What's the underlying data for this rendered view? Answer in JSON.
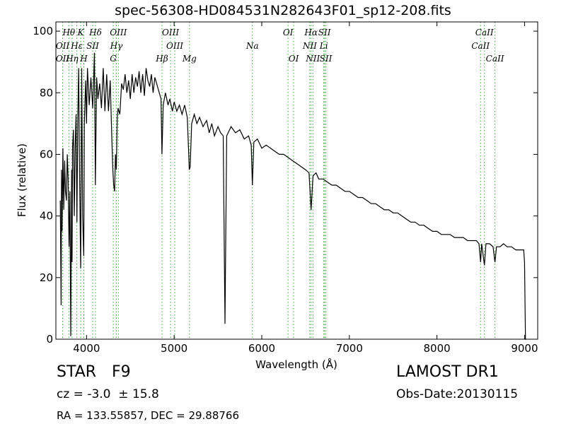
{
  "chart_data": {
    "type": "line",
    "title": "spec-56308-HD084531N282643F01_sp12-208.fits",
    "xlabel": "Wavelength (Å)",
    "ylabel": "Flux (relative)",
    "xlim": [
      3650,
      9150
    ],
    "ylim": [
      0,
      103
    ],
    "x_ticks": [
      4000,
      5000,
      6000,
      7000,
      8000,
      9000
    ],
    "y_ticks": [
      0,
      20,
      40,
      60,
      80,
      100
    ],
    "grid": false,
    "line_color": "#000000",
    "marker_color": "#33aa33",
    "spectrum": [
      [
        3700,
        45
      ],
      [
        3710,
        11
      ],
      [
        3715,
        55
      ],
      [
        3720,
        35
      ],
      [
        3730,
        62
      ],
      [
        3740,
        42
      ],
      [
        3750,
        58
      ],
      [
        3760,
        48
      ],
      [
        3770,
        45
      ],
      [
        3780,
        60
      ],
      [
        3790,
        52
      ],
      [
        3800,
        30
      ],
      [
        3810,
        48
      ],
      [
        3820,
        1
      ],
      [
        3830,
        55
      ],
      [
        3835,
        25
      ],
      [
        3840,
        62
      ],
      [
        3850,
        68
      ],
      [
        3860,
        40
      ],
      [
        3870,
        62
      ],
      [
        3880,
        73
      ],
      [
        3890,
        38
      ],
      [
        3900,
        72
      ],
      [
        3910,
        88
      ],
      [
        3920,
        55
      ],
      [
        3933,
        23
      ],
      [
        3945,
        88
      ],
      [
        3955,
        40
      ],
      [
        3968,
        27
      ],
      [
        3975,
        70
      ],
      [
        3990,
        84
      ],
      [
        4000,
        70
      ],
      [
        4010,
        88
      ],
      [
        4030,
        76
      ],
      [
        4050,
        85
      ],
      [
        4070,
        75
      ],
      [
        4090,
        93
      ],
      [
        4101,
        50
      ],
      [
        4115,
        85
      ],
      [
        4130,
        78
      ],
      [
        4150,
        83
      ],
      [
        4170,
        75
      ],
      [
        4190,
        88
      ],
      [
        4210,
        74
      ],
      [
        4230,
        86
      ],
      [
        4250,
        74
      ],
      [
        4270,
        84
      ],
      [
        4290,
        64
      ],
      [
        4300,
        55
      ],
      [
        4310,
        50
      ],
      [
        4320,
        48
      ],
      [
        4330,
        60
      ],
      [
        4340,
        55
      ],
      [
        4350,
        72
      ],
      [
        4360,
        75
      ],
      [
        4380,
        73
      ],
      [
        4400,
        83
      ],
      [
        4420,
        81
      ],
      [
        4440,
        86
      ],
      [
        4460,
        80
      ],
      [
        4480,
        84
      ],
      [
        4500,
        78
      ],
      [
        4520,
        86
      ],
      [
        4540,
        80
      ],
      [
        4560,
        85
      ],
      [
        4580,
        82
      ],
      [
        4600,
        87
      ],
      [
        4620,
        80
      ],
      [
        4640,
        86
      ],
      [
        4660,
        79
      ],
      [
        4680,
        88
      ],
      [
        4700,
        84
      ],
      [
        4720,
        82
      ],
      [
        4740,
        86
      ],
      [
        4760,
        80
      ],
      [
        4780,
        85
      ],
      [
        4800,
        83
      ],
      [
        4830,
        80
      ],
      [
        4850,
        78
      ],
      [
        4861,
        60
      ],
      [
        4875,
        76
      ],
      [
        4900,
        80
      ],
      [
        4930,
        76
      ],
      [
        4950,
        78
      ],
      [
        4980,
        74
      ],
      [
        5000,
        77
      ],
      [
        5030,
        74
      ],
      [
        5060,
        76
      ],
      [
        5090,
        73
      ],
      [
        5120,
        76
      ],
      [
        5150,
        72
      ],
      [
        5167,
        60
      ],
      [
        5172,
        55
      ],
      [
        5183,
        56
      ],
      [
        5200,
        70
      ],
      [
        5230,
        73
      ],
      [
        5260,
        70
      ],
      [
        5290,
        72
      ],
      [
        5330,
        69
      ],
      [
        5370,
        71
      ],
      [
        5400,
        67
      ],
      [
        5430,
        70
      ],
      [
        5460,
        66
      ],
      [
        5500,
        69
      ],
      [
        5530,
        67
      ],
      [
        5560,
        66
      ],
      [
        5580,
        5
      ],
      [
        5600,
        66
      ],
      [
        5650,
        69
      ],
      [
        5700,
        67
      ],
      [
        5750,
        68
      ],
      [
        5800,
        65
      ],
      [
        5850,
        66
      ],
      [
        5880,
        63
      ],
      [
        5893,
        50
      ],
      [
        5910,
        64
      ],
      [
        5950,
        65
      ],
      [
        6000,
        62
      ],
      [
        6050,
        63
      ],
      [
        6100,
        62
      ],
      [
        6150,
        61
      ],
      [
        6200,
        60
      ],
      [
        6250,
        60
      ],
      [
        6300,
        59
      ],
      [
        6350,
        58
      ],
      [
        6400,
        57
      ],
      [
        6450,
        56
      ],
      [
        6500,
        55
      ],
      [
        6540,
        54
      ],
      [
        6563,
        42
      ],
      [
        6585,
        53
      ],
      [
        6620,
        54
      ],
      [
        6650,
        52
      ],
      [
        6700,
        52
      ],
      [
        6750,
        51
      ],
      [
        6800,
        50
      ],
      [
        6850,
        50
      ],
      [
        6900,
        49
      ],
      [
        6950,
        48
      ],
      [
        7000,
        48
      ],
      [
        7050,
        47
      ],
      [
        7100,
        46
      ],
      [
        7150,
        46
      ],
      [
        7200,
        45
      ],
      [
        7250,
        44
      ],
      [
        7300,
        44
      ],
      [
        7350,
        43
      ],
      [
        7400,
        42
      ],
      [
        7450,
        42
      ],
      [
        7500,
        41
      ],
      [
        7550,
        41
      ],
      [
        7600,
        40
      ],
      [
        7650,
        39
      ],
      [
        7700,
        38
      ],
      [
        7750,
        38
      ],
      [
        7800,
        37
      ],
      [
        7850,
        37
      ],
      [
        7900,
        36
      ],
      [
        7950,
        35
      ],
      [
        8000,
        35
      ],
      [
        8050,
        34
      ],
      [
        8100,
        34
      ],
      [
        8150,
        34
      ],
      [
        8200,
        33
      ],
      [
        8250,
        33
      ],
      [
        8300,
        33
      ],
      [
        8350,
        32
      ],
      [
        8400,
        32
      ],
      [
        8450,
        32
      ],
      [
        8480,
        31
      ],
      [
        8498,
        25
      ],
      [
        8510,
        31
      ],
      [
        8542,
        24
      ],
      [
        8560,
        31
      ],
      [
        8600,
        31
      ],
      [
        8640,
        30
      ],
      [
        8662,
        25
      ],
      [
        8680,
        30
      ],
      [
        8720,
        30
      ],
      [
        8760,
        31
      ],
      [
        8800,
        30
      ],
      [
        8850,
        30
      ],
      [
        8900,
        29
      ],
      [
        8950,
        29
      ],
      [
        8990,
        29
      ],
      [
        9000,
        25
      ],
      [
        9010,
        0
      ],
      [
        9020,
        0
      ]
    ],
    "lines": [
      {
        "label": "Hθ",
        "x": 3798,
        "row": 0
      },
      {
        "label": "OII",
        "x": 3727,
        "row": 1
      },
      {
        "label": "OII",
        "x": 3727,
        "row": 2
      },
      {
        "label": "Hη",
        "x": 3835,
        "row": 2
      },
      {
        "label": "K",
        "x": 3934,
        "row": 0
      },
      {
        "label": "Hε",
        "x": 3889,
        "row": 1
      },
      {
        "label": "SII",
        "x": 4070,
        "row": 1
      },
      {
        "label": "H",
        "x": 3969,
        "row": 2
      },
      {
        "label": "Hδ",
        "x": 4102,
        "row": 0
      },
      {
        "label": "OIII",
        "x": 4363,
        "row": 0
      },
      {
        "label": "Hγ",
        "x": 4340,
        "row": 1
      },
      {
        "label": "G",
        "x": 4305,
        "row": 2
      },
      {
        "label": "OIII",
        "x": 4959,
        "row": 0
      },
      {
        "label": "OIII",
        "x": 5007,
        "row": 1
      },
      {
        "label": "Hβ",
        "x": 4861,
        "row": 2
      },
      {
        "label": "Mg",
        "x": 5175,
        "row": 2
      },
      {
        "label": "Na",
        "x": 5893,
        "row": 1
      },
      {
        "label": "OI",
        "x": 6300,
        "row": 0
      },
      {
        "label": "OI",
        "x": 6364,
        "row": 2
      },
      {
        "label": "Hα",
        "x": 6563,
        "row": 0
      },
      {
        "label": "SII",
        "x": 6716,
        "row": 0
      },
      {
        "label": "NII",
        "x": 6548,
        "row": 1
      },
      {
        "label": "Li",
        "x": 6708,
        "row": 1
      },
      {
        "label": "NII",
        "x": 6584,
        "row": 2
      },
      {
        "label": "SII",
        "x": 6731,
        "row": 2
      },
      {
        "label": "CaII",
        "x": 8542,
        "row": 0
      },
      {
        "label": "CaII",
        "x": 8498,
        "row": 1
      },
      {
        "label": "CaII",
        "x": 8662,
        "row": 2
      }
    ]
  },
  "info": {
    "object_class": "STAR",
    "subclass": "F9",
    "redshift": "cz = -3.0  ± 15.8",
    "coords": "RA = 133.55857, DEC = 29.88766",
    "survey": "LAMOST DR1",
    "obs_date": "Obs-Date:20130115"
  }
}
